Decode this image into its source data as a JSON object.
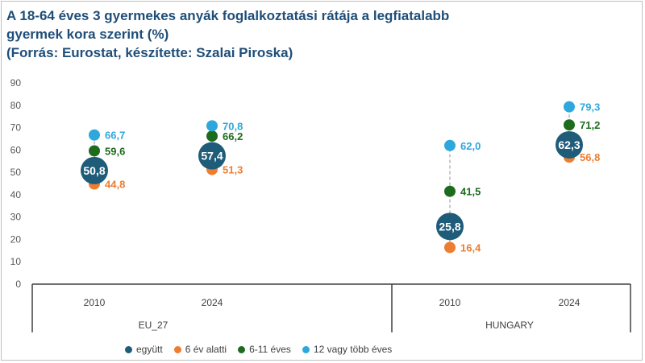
{
  "title_lines": [
    "A 18-64 éves 3 gyermekes anyák foglalkoztatási rátája a legfiatalabb",
    "gyermek kora szerint (%)",
    "(Forrás: Eurostat, készítette: Szalai Piroska)"
  ],
  "legend": [
    {
      "label": "együtt",
      "color": "#1f5c7a"
    },
    {
      "label": "6 év alatti",
      "color": "#ed7d31"
    },
    {
      "label": "6-11 éves",
      "color": "#1e6b1e"
    },
    {
      "label": "12 vagy több éves",
      "color": "#2ea8dc"
    }
  ],
  "chart_data": {
    "type": "scatter",
    "title": "A 18-64 éves 3 gyermekes anyák foglalkoztatási rátája a legfiatalabb gyermek kora szerint (%)",
    "ylim": [
      0,
      90
    ],
    "yticks": [
      0,
      10,
      20,
      30,
      40,
      50,
      60,
      70,
      80,
      90
    ],
    "categories": [
      {
        "year": "2010",
        "group": "EU_27"
      },
      {
        "year": "2024",
        "group": "EU_27"
      },
      {
        "year": "2010",
        "group": "HUNGARY"
      },
      {
        "year": "2024",
        "group": "HUNGARY"
      }
    ],
    "groups": [
      "EU_27",
      "HUNGARY"
    ],
    "series": [
      {
        "name": "együtt",
        "color": "#1f5c7a",
        "values": [
          50.8,
          57.4,
          25.8,
          62.3
        ],
        "labels": [
          "50,8",
          "57,4",
          "25,8",
          "62,3"
        ]
      },
      {
        "name": "6 év alatti",
        "color": "#ed7d31",
        "values": [
          44.8,
          51.3,
          16.4,
          56.8
        ],
        "labels": [
          "44,8",
          "51,3",
          "16,4",
          "56,8"
        ]
      },
      {
        "name": "6-11 éves",
        "color": "#1e6b1e",
        "values": [
          59.6,
          66.2,
          41.5,
          71.2
        ],
        "labels": [
          "59,6",
          "66,2",
          "41,5",
          "71,2"
        ]
      },
      {
        "name": "12 vagy több éves",
        "color": "#2ea8dc",
        "values": [
          66.7,
          70.8,
          62.0,
          79.3
        ],
        "labels": [
          "66,7",
          "70,8",
          "62,0",
          "79,3"
        ]
      }
    ]
  }
}
